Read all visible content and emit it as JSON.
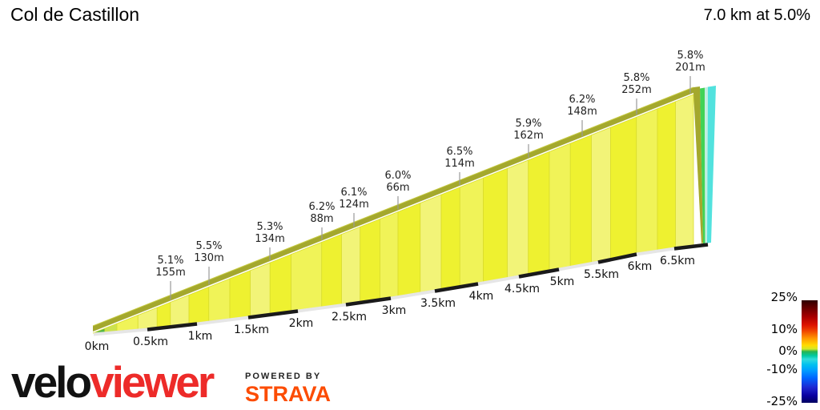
{
  "header": {
    "title": "Col de Castillon",
    "summary": "7.0 km at 5.0%"
  },
  "chart_data": {
    "type": "area",
    "title": "Col de Castillon",
    "total_distance_km": 7.0,
    "average_gradient_pct": 5.0,
    "x_ticks": [
      "0km",
      "0.5km",
      "1km",
      "1.5km",
      "2km",
      "2.5km",
      "3km",
      "3.5km",
      "4km",
      "4.5km",
      "5km",
      "5.5km",
      "6km",
      "6.5km"
    ],
    "segment_labels": [
      {
        "gradient": "5.1%",
        "length": "155m"
      },
      {
        "gradient": "5.5%",
        "length": "130m"
      },
      {
        "gradient": "5.3%",
        "length": "134m"
      },
      {
        "gradient": "6.2%",
        "length": "88m"
      },
      {
        "gradient": "6.1%",
        "length": "124m"
      },
      {
        "gradient": "6.0%",
        "length": "66m"
      },
      {
        "gradient": "6.5%",
        "length": "114m"
      },
      {
        "gradient": "5.9%",
        "length": "162m"
      },
      {
        "gradient": "6.2%",
        "length": "148m"
      },
      {
        "gradient": "5.8%",
        "length": "252m"
      },
      {
        "gradient": "5.8%",
        "length": "201m"
      }
    ],
    "legend": {
      "position": "bottom-right",
      "ticks": [
        "25%",
        "10%",
        "0%",
        "-10%",
        "-25%"
      ],
      "gradient_stops": [
        {
          "at": 0.0,
          "c": "#2e0000"
        },
        {
          "at": 0.07,
          "c": "#640000"
        },
        {
          "at": 0.16,
          "c": "#a80000"
        },
        {
          "at": 0.24,
          "c": "#dc1400"
        },
        {
          "at": 0.3,
          "c": "#f04600"
        },
        {
          "at": 0.37,
          "c": "#ff9600"
        },
        {
          "at": 0.44,
          "c": "#ffdc00"
        },
        {
          "at": 0.475,
          "c": "#d2e828"
        },
        {
          "at": 0.5,
          "c": "#28b450"
        },
        {
          "at": 0.54,
          "c": "#00c8a0"
        },
        {
          "at": 0.575,
          "c": "#32dcdc"
        },
        {
          "at": 0.63,
          "c": "#00c0f0"
        },
        {
          "at": 0.68,
          "c": "#00a0ff"
        },
        {
          "at": 0.76,
          "c": "#0064ff"
        },
        {
          "at": 0.85,
          "c": "#1e28d2"
        },
        {
          "at": 0.93,
          "c": "#0a00a0"
        },
        {
          "at": 1.0,
          "c": "#000060"
        }
      ]
    },
    "colors": {
      "road_edge": "#a4a82d",
      "road_edge_highlight": "#c6ca40",
      "slice_stroke": "#d9dd2e",
      "leader_line": "#999999",
      "axis_strip": "#e6e6e6",
      "axis_black": "#1a1a1a",
      "slice_palette": {
        "b": "#eef130",
        "p": "#f2f478",
        "m": "#f0f358",
        "g": "#55b848",
        "yg": "#cce24e"
      },
      "end_cap": [
        "#f2f4a0",
        "#41d355",
        "#c2eee0",
        "#52e2de"
      ]
    }
  },
  "footer": {
    "brand_velo": "velo",
    "brand_viewer": "viewer",
    "powered_by": "POWERED BY",
    "strava": "STRAVA"
  }
}
